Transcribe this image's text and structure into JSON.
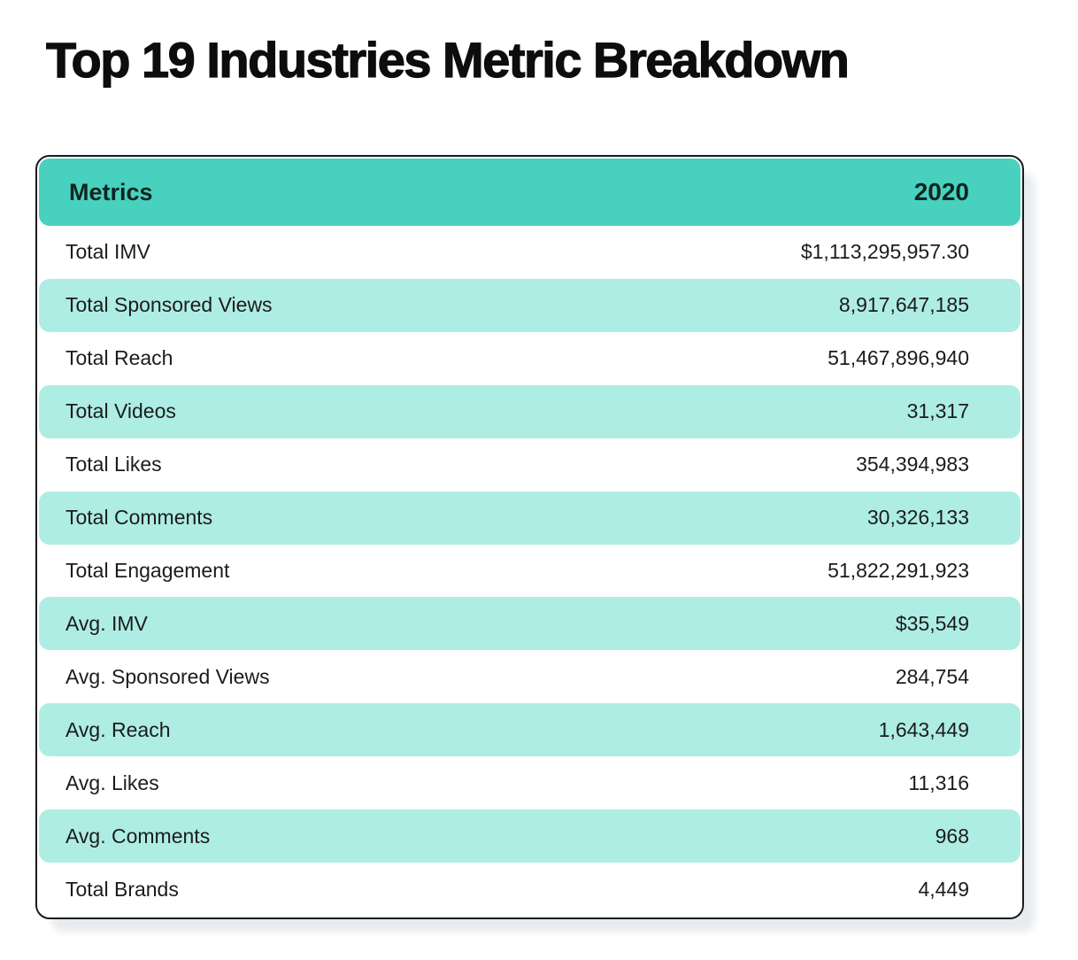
{
  "title": "Top 19 Industries Metric Breakdown",
  "chart_data": {
    "type": "table",
    "title": "Top 19 Industries Metric Breakdown",
    "columns": [
      "Metrics",
      "2020"
    ],
    "rows": [
      {
        "metric": "Total IMV",
        "value": "$1,113,295,957.30"
      },
      {
        "metric": "Total Sponsored Views",
        "value": "8,917,647,185"
      },
      {
        "metric": "Total Reach",
        "value": "51,467,896,940"
      },
      {
        "metric": "Total Videos",
        "value": "31,317"
      },
      {
        "metric": "Total Likes",
        "value": "354,394,983"
      },
      {
        "metric": "Total Comments",
        "value": "30,326,133"
      },
      {
        "metric": "Total Engagement",
        "value": "51,822,291,923"
      },
      {
        "metric": "Avg. IMV",
        "value": "$35,549"
      },
      {
        "metric": "Avg. Sponsored Views",
        "value": "284,754"
      },
      {
        "metric": "Avg. Reach",
        "value": "1,643,449"
      },
      {
        "metric": "Avg. Likes",
        "value": "11,316"
      },
      {
        "metric": "Avg. Comments",
        "value": "968"
      },
      {
        "metric": "Total Brands",
        "value": "4,449"
      }
    ],
    "layout": {
      "row_striping": "alternating, first row white, even rows teal band",
      "value_alignment": "right"
    }
  },
  "colors": {
    "header_bg": "#49d1bf",
    "band_bg": "#aeede3",
    "text": "#1c1c1c",
    "border": "#1a1a1a",
    "shadow": "#e7ebee"
  }
}
